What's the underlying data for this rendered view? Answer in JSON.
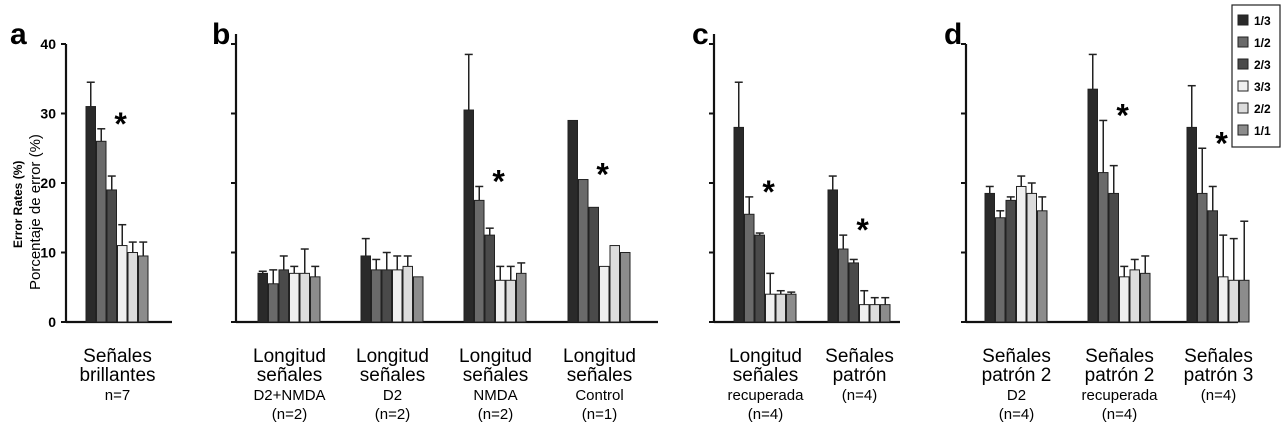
{
  "chart_data": [
    {
      "panel": "a",
      "type": "bar",
      "ylabel": "Error Rates (%)",
      "ylabel_sub": "Porcentaje de error (%)",
      "ylim": [
        0,
        40
      ],
      "yticks": [
        0,
        10,
        20,
        30,
        40
      ],
      "groups": [
        {
          "label_lines": [
            "Señales",
            "brillantes",
            "n=7"
          ],
          "values": [
            31,
            26,
            19,
            11,
            10,
            9.5
          ],
          "errors": [
            3.5,
            1.8,
            2,
            3,
            1.5,
            2
          ],
          "star": true
        }
      ]
    },
    {
      "panel": "b",
      "type": "bar",
      "ylim": [
        0,
        40
      ],
      "groups": [
        {
          "label_lines": [
            "Longitud",
            "señales",
            "D2+NMDA",
            "(n=2)"
          ],
          "values": [
            7,
            5.5,
            7.5,
            7,
            7,
            6.5
          ],
          "errors": [
            0.3,
            2,
            2,
            1,
            3.5,
            1.5
          ],
          "star": false
        },
        {
          "label_lines": [
            "Longitud",
            "señales",
            "D2",
            "(n=2)"
          ],
          "values": [
            9.5,
            7.5,
            7.5,
            7.5,
            8,
            6.5
          ],
          "errors": [
            2.5,
            1.5,
            2.5,
            2,
            1.5,
            0
          ],
          "star": false
        },
        {
          "label_lines": [
            "Longitud",
            "señales",
            "NMDA",
            "(n=2)"
          ],
          "values": [
            30.5,
            17.5,
            12.5,
            6,
            6,
            7
          ],
          "errors": [
            8,
            2,
            1,
            2,
            2,
            1.5
          ],
          "star": true
        },
        {
          "label_lines": [
            "Longitud",
            "señales",
            "Control",
            "(n=1)"
          ],
          "values": [
            29,
            20.5,
            16.5,
            8,
            11,
            10
          ],
          "errors": [
            0,
            0,
            0,
            0,
            0,
            0
          ],
          "star": true
        }
      ]
    },
    {
      "panel": "c",
      "type": "bar",
      "ylim": [
        0,
        40
      ],
      "groups": [
        {
          "label_lines": [
            "Longitud",
            "señales",
            "recuperada",
            "(n=4)"
          ],
          "values": [
            28,
            15.5,
            12.5,
            4,
            4,
            4
          ],
          "errors": [
            6.5,
            2.5,
            0.3,
            3,
            0.5,
            0.3
          ],
          "star": true
        },
        {
          "label_lines": [
            "Señales",
            "patrón",
            "(n=4)"
          ],
          "values": [
            19,
            10.5,
            8.5,
            2.5,
            2.5,
            2.5
          ],
          "errors": [
            2,
            2,
            0.5,
            2,
            1,
            1
          ],
          "star": true
        }
      ]
    },
    {
      "panel": "d",
      "type": "bar",
      "ylim": [
        0,
        40
      ],
      "groups": [
        {
          "label_lines": [
            "Señales",
            "patrón 2",
            "D2",
            "(n=4)"
          ],
          "values": [
            18.5,
            15,
            17.5,
            19.5,
            18.5,
            16
          ],
          "errors": [
            1,
            1,
            0.5,
            1.5,
            1.5,
            2
          ],
          "star": false
        },
        {
          "label_lines": [
            "Señales",
            "patrón 2",
            "recuperada",
            "(n=4)"
          ],
          "values": [
            33.5,
            21.5,
            18.5,
            6.5,
            7.5,
            7
          ],
          "errors": [
            5,
            7.5,
            4,
            1.5,
            1.5,
            2.5
          ],
          "star": true
        },
        {
          "label_lines": [
            "Señales",
            "patrón 3",
            "(n=4)"
          ],
          "values": [
            28,
            18.5,
            16,
            6.5,
            6,
            6
          ],
          "errors": [
            6,
            6.5,
            3.5,
            6,
            6,
            8.5
          ],
          "star": true
        }
      ]
    }
  ],
  "legend": {
    "entries": [
      "1/3",
      "1/2",
      "2/3",
      "3/3",
      "2/2",
      "1/1"
    ],
    "colors": [
      "#2a2a2a",
      "#6a6a6a",
      "#4a4a4a",
      "#f0f0f0",
      "#dcdcdc",
      "#8c8c8c"
    ]
  },
  "star_symbol": "*"
}
